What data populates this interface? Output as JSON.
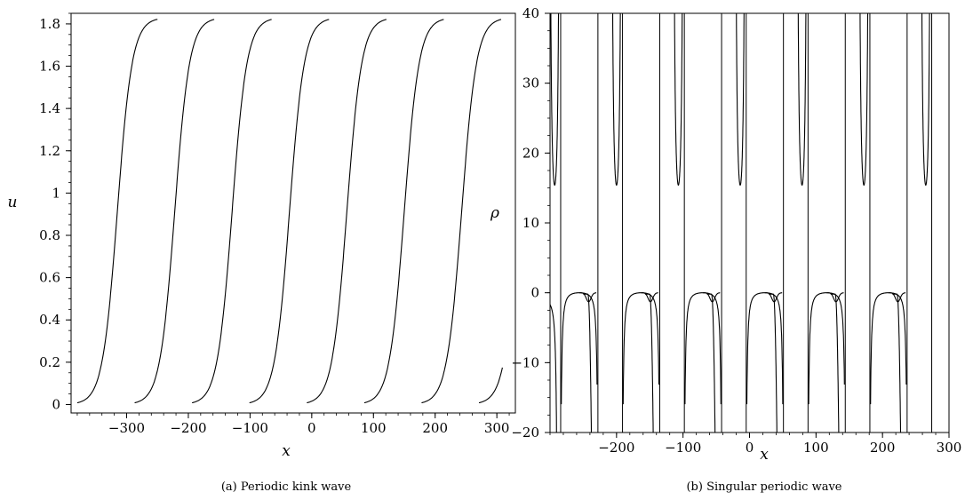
{
  "chart_data": [
    {
      "type": "line",
      "caption": "(a)  Periodic kink wave",
      "xlabel": "x",
      "ylabel": "u",
      "xlim": [
        -390,
        330
      ],
      "ylim": [
        -0.04,
        1.85
      ],
      "xticks": [
        -300,
        -200,
        -100,
        0,
        100,
        200,
        300
      ],
      "xtick_labels": [
        "−300",
        "−200",
        "−100",
        "0",
        "100",
        "200",
        "300"
      ],
      "yticks": [
        0,
        0.2,
        0.4,
        0.6,
        0.8,
        1,
        1.2,
        1.4,
        1.6,
        1.8
      ],
      "ytick_labels": [
        "0",
        "0.2",
        "0.4",
        "0.6",
        "0.8",
        "1",
        "1.2",
        "1.4",
        "1.6",
        "1.8"
      ],
      "grid": false,
      "legend": "none",
      "kink_period": 93,
      "kink_centers": [
        -315,
        -222,
        -129,
        -36,
        57,
        150,
        243
      ],
      "kink_amplitude": 1.83,
      "kink_width": 12,
      "branch_x_ranges": [
        [
          -380,
          -250
        ],
        [
          -287,
          -158
        ],
        [
          -194,
          -65
        ],
        [
          -101,
          28
        ],
        [
          -8,
          121
        ],
        [
          85,
          214
        ],
        [
          178,
          307
        ],
        [
          271,
          309
        ]
      ]
    },
    {
      "type": "line",
      "caption": "(b)  Singular periodic wave",
      "xlabel": "x",
      "ylabel": "ρ",
      "xlim": [
        -300,
        300
      ],
      "ylim": [
        -20,
        40
      ],
      "xticks": [
        -200,
        -100,
        0,
        100,
        200,
        300
      ],
      "xtick_labels": [
        "−200",
        "−100",
        "0",
        "100",
        "200",
        "300"
      ],
      "yticks": [
        -20,
        -10,
        0,
        10,
        20,
        30,
        40
      ],
      "ytick_labels": [
        "−20",
        "−10",
        "0",
        "10",
        "20",
        "30",
        "40"
      ],
      "grid": false,
      "legend": "none",
      "period": 93,
      "upper_branch_min": 15.4,
      "upper_branch_centers": [
        -293,
        -200,
        -107,
        -14,
        79,
        172,
        265
      ],
      "singular_lines_x": [
        -284,
        -228,
        -191,
        -135,
        -98,
        -42,
        -5,
        51,
        88,
        144,
        181,
        237,
        274
      ],
      "lower_branch_centers": [
        -256,
        -163,
        -70,
        23,
        116,
        209
      ],
      "dip_x": [
        -242,
        -149,
        -56,
        37,
        130,
        223
      ],
      "dip_depth": -1.3
    }
  ]
}
